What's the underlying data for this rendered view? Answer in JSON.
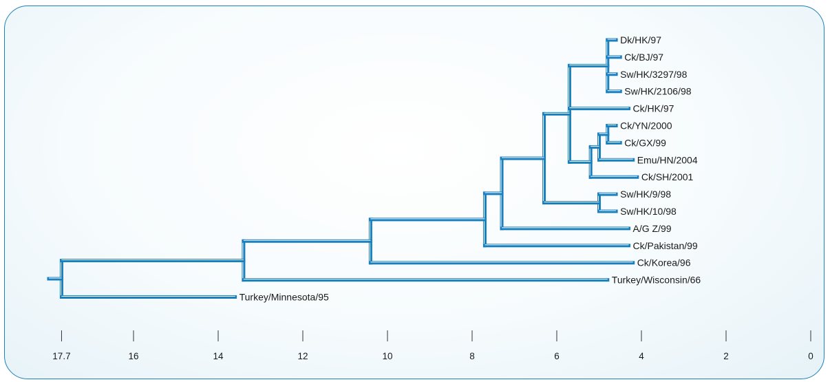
{
  "colors": {
    "branch": "#1a7fbd",
    "branch_highlight": "#ffffff",
    "axis": "#333333",
    "frame": "#1c7fb6"
  },
  "tree": {
    "leaves": [
      {
        "id": "dk_hk_97",
        "label": "Dk/HK/97",
        "time": 4.6
      },
      {
        "id": "ck_bj_97",
        "label": "Ck/BJ/97",
        "time": 4.5
      },
      {
        "id": "sw_hk_3297_98",
        "label": "Sw/HK/3297/98",
        "time": 4.6
      },
      {
        "id": "sw_hk_2106_98",
        "label": "Sw/HK/2106/98",
        "time": 4.5
      },
      {
        "id": "ck_hk_97",
        "label": "Ck/HK/97",
        "time": 4.3
      },
      {
        "id": "ck_yn_2000",
        "label": "Ck/YN/2000",
        "time": 4.6
      },
      {
        "id": "ck_gx_99",
        "label": "Ck/GX/99",
        "time": 4.5
      },
      {
        "id": "emu_hn_2004",
        "label": "Emu/HN/2004",
        "time": 4.2
      },
      {
        "id": "ck_sh_2001",
        "label": "Ck/SH/2001",
        "time": 4.1
      },
      {
        "id": "sw_hk_9_98",
        "label": "Sw/HK/9/98",
        "time": 4.6
      },
      {
        "id": "sw_hk_10_98",
        "label": "Sw/HK/10/98",
        "time": 4.6
      },
      {
        "id": "ag_z_99",
        "label": "A/G Z/99",
        "time": 4.3
      },
      {
        "id": "ck_pakistan_99",
        "label": "Ck/Pakistan/99",
        "time": 4.3
      },
      {
        "id": "ck_korea_96",
        "label": "Ck/Korea/96",
        "time": 4.2
      },
      {
        "id": "turkey_wisconsin_66",
        "label": "Turkey/Wisconsin/66",
        "time": 4.8
      },
      {
        "id": "turkey_minnesota_95",
        "label": "Turkey/Minnesota/95",
        "time": 13.6
      }
    ],
    "nodes": [
      {
        "id": "n_dk_sw",
        "time": 4.8,
        "children": [
          "dk_hk_97",
          "ck_bj_97",
          "sw_hk_3297_98",
          "sw_hk_2106_98"
        ]
      },
      {
        "id": "n_yn_gx",
        "time": 4.8,
        "children": [
          "ck_yn_2000",
          "ck_gx_99"
        ]
      },
      {
        "id": "n_yn_emu",
        "time": 5.0,
        "children": [
          "n_yn_gx",
          "emu_hn_2004"
        ]
      },
      {
        "id": "n_yn_sh",
        "time": 5.2,
        "children": [
          "n_yn_emu",
          "ck_sh_2001"
        ]
      },
      {
        "id": "n_big",
        "time": 5.7,
        "children": [
          "n_dk_sw",
          "ck_hk_97",
          "n_yn_sh"
        ]
      },
      {
        "id": "n_sw9",
        "time": 5.0,
        "children": [
          "sw_hk_9_98",
          "sw_hk_10_98"
        ]
      },
      {
        "id": "n_6_3",
        "time": 6.3,
        "children": [
          "n_big",
          "n_sw9"
        ]
      },
      {
        "id": "n_7_3",
        "time": 7.3,
        "children": [
          "n_6_3",
          "ag_z_99"
        ]
      },
      {
        "id": "n_7_7",
        "time": 7.7,
        "children": [
          "n_7_3",
          "ck_pakistan_99"
        ]
      },
      {
        "id": "n_10_4",
        "time": 10.4,
        "children": [
          "n_7_7",
          "ck_korea_96"
        ]
      },
      {
        "id": "n_13_4",
        "time": 13.4,
        "children": [
          "n_10_4",
          "turkey_wisconsin_66"
        ]
      },
      {
        "id": "root",
        "time": 17.7,
        "children": [
          "n_13_4",
          "turkey_minnesota_95"
        ]
      }
    ],
    "root_stem_time": 18.0
  },
  "axis": {
    "min": 0,
    "max": 18.0,
    "reversed": true,
    "ticks": [
      {
        "value": 17.7,
        "label": "17.7"
      },
      {
        "value": 16,
        "label": "16"
      },
      {
        "value": 14,
        "label": "14"
      },
      {
        "value": 12,
        "label": "12"
      },
      {
        "value": 10,
        "label": "10"
      },
      {
        "value": 8,
        "label": "8"
      },
      {
        "value": 6,
        "label": "6"
      },
      {
        "value": 4,
        "label": "4"
      },
      {
        "value": 2,
        "label": "2"
      },
      {
        "value": 0,
        "label": "0"
      }
    ]
  }
}
